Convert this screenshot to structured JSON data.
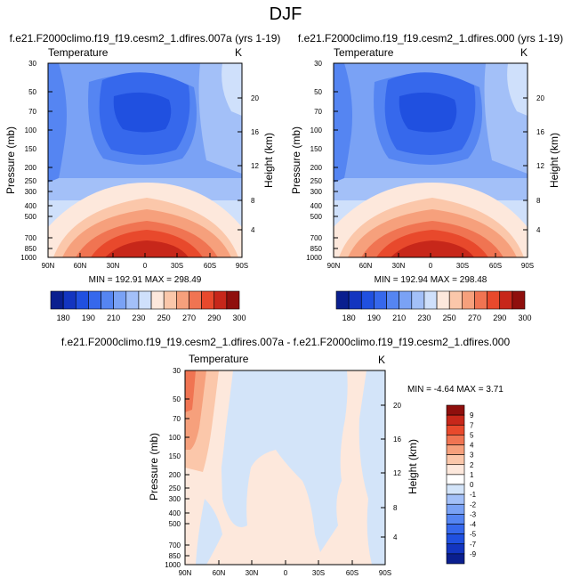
{
  "figure_title": "DJF",
  "chart_data": [
    {
      "type": "heatmap",
      "id": "case1",
      "title": "f.e21.F2000climo.f19_f19.cesm2_1.dfires.007a (yrs 1-19)",
      "left_title": "Temperature",
      "right_title": "K",
      "xlabel": "",
      "ylabel": "Pressure (mb)",
      "ylabel_right": "Height (km)",
      "x_ticks": [
        "90N",
        "60N",
        "30N",
        "0",
        "30S",
        "60S",
        "90S"
      ],
      "y_ticks": [
        "30",
        "50",
        "70",
        "100",
        "150",
        "200",
        "250",
        "300",
        "400",
        "500",
        "700",
        "850",
        "1000"
      ],
      "y_ticks_right": [
        "20",
        "16",
        "12",
        "8",
        "4"
      ],
      "stats": "MIN = 192.91  MAX = 298.49",
      "min": 192.91,
      "max": 298.49,
      "contour_levels": [
        180,
        190,
        200,
        210,
        220,
        230,
        240,
        250,
        260,
        270,
        280,
        290,
        300
      ],
      "colorbar_labels": [
        "180",
        "190",
        "210",
        "230",
        "250",
        "270",
        "290",
        "300"
      ],
      "description_of_field": "zonal-mean temperature, cold tropical tropopause near 100 mb, warm tropical surface"
    },
    {
      "type": "heatmap",
      "id": "case2",
      "title": "f.e21.F2000climo.f19_f19.cesm2_1.dfires.000 (yrs 1-19)",
      "left_title": "Temperature",
      "right_title": "K",
      "xlabel": "",
      "ylabel": "Pressure (mb)",
      "ylabel_right": "Height (km)",
      "x_ticks": [
        "90N",
        "60N",
        "30N",
        "0",
        "30S",
        "60S",
        "90S"
      ],
      "y_ticks": [
        "30",
        "50",
        "70",
        "100",
        "150",
        "200",
        "250",
        "300",
        "400",
        "500",
        "700",
        "850",
        "1000"
      ],
      "y_ticks_right": [
        "20",
        "16",
        "12",
        "8",
        "4"
      ],
      "stats": "MIN = 192.94  MAX = 298.48",
      "min": 192.94,
      "max": 298.48,
      "contour_levels": [
        180,
        190,
        200,
        210,
        220,
        230,
        240,
        250,
        260,
        270,
        280,
        290,
        300
      ],
      "colorbar_labels": [
        "180",
        "190",
        "210",
        "230",
        "250",
        "270",
        "290",
        "300"
      ]
    },
    {
      "type": "heatmap",
      "id": "diff",
      "title": "f.e21.F2000climo.f19_f19.cesm2_1.dfires.007a - f.e21.F2000climo.f19_f19.cesm2_1.dfires.000",
      "left_title": "Temperature",
      "right_title": "K",
      "xlabel": "",
      "ylabel": "Pressure (mb)",
      "ylabel_right": "Height (km)",
      "x_ticks": [
        "90N",
        "60N",
        "30N",
        "0",
        "30S",
        "60S",
        "90S"
      ],
      "y_ticks": [
        "30",
        "50",
        "70",
        "100",
        "150",
        "200",
        "250",
        "300",
        "400",
        "500",
        "700",
        "850",
        "1000"
      ],
      "y_ticks_right": [
        "20",
        "16",
        "12",
        "8",
        "4"
      ],
      "stats": "MIN = -4.64  MAX =  3.71",
      "min": -4.64,
      "max": 3.71,
      "contour_levels": [
        -9,
        -7,
        -5,
        -4,
        -3,
        -2,
        -1,
        0,
        1,
        2,
        3,
        4,
        5,
        7,
        9
      ],
      "colorbar_labels": [
        "9",
        "7",
        "5",
        "4",
        "3",
        "2",
        "1",
        "0",
        "-1",
        "-2",
        "-3",
        "-4",
        "-5",
        "-7",
        "-9"
      ]
    }
  ],
  "colors": {
    "seq": [
      "#0a1f8f",
      "#1335c0",
      "#2050e0",
      "#3668ec",
      "#5585f2",
      "#7aa2f5",
      "#a3c0f8",
      "#cfe0fb",
      "#fde8dc",
      "#fbc7aa",
      "#f6a07c",
      "#f07452",
      "#e8492c",
      "#c7271a",
      "#8f0f0d"
    ],
    "diff_rev": [
      "#8f0f0d",
      "#c7271a",
      "#e8492c",
      "#f07452",
      "#f6a07c",
      "#fbc7aa",
      "#fde8dc",
      "#ffffff",
      "#d3e4f9",
      "#a3c0f8",
      "#7aa2f5",
      "#5585f2",
      "#3668ec",
      "#2050e0",
      "#1335c0",
      "#0a1f8f"
    ]
  }
}
